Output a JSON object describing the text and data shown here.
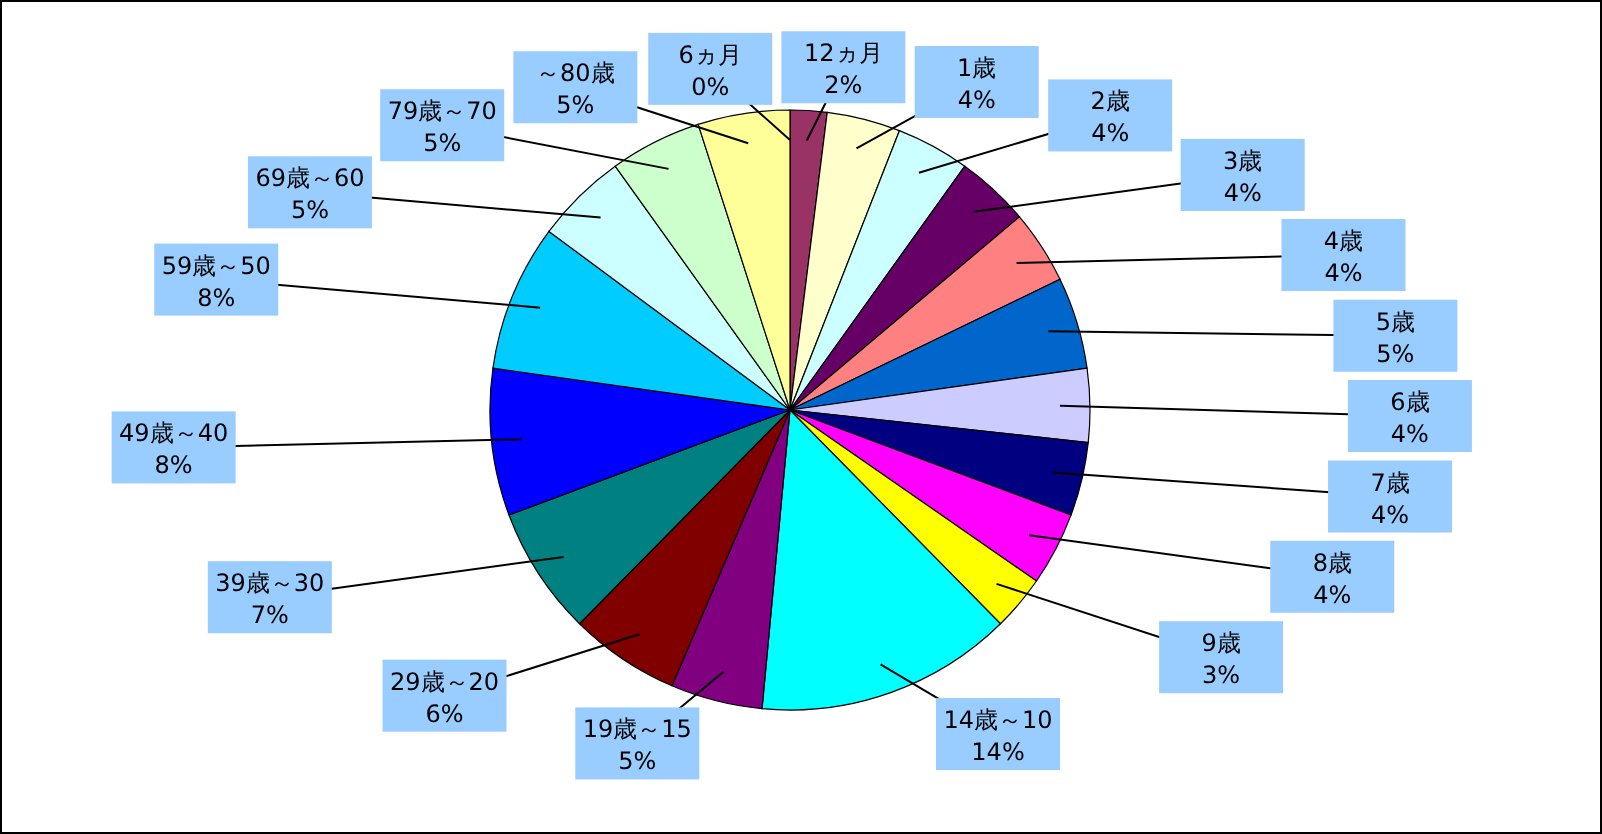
{
  "chart_data": {
    "type": "pie",
    "categories": [
      "6ヵ月",
      "12ヵ月",
      "1歳",
      "2歳",
      "3歳",
      "4歳",
      "5歳",
      "6歳",
      "7歳",
      "8歳",
      "9歳",
      "14歳～10",
      "19歳～15",
      "29歳～20",
      "39歳～30",
      "49歳～40",
      "59歳～50",
      "69歳～60",
      "79歳～70",
      "～80歳"
    ],
    "values": [
      0,
      2,
      4,
      4,
      4,
      4,
      5,
      4,
      4,
      4,
      3,
      14,
      5,
      6,
      7,
      8,
      8,
      5,
      5,
      5
    ],
    "value_labels": [
      "0%",
      "2%",
      "4%",
      "4%",
      "4%",
      "4%",
      "5%",
      "4%",
      "4%",
      "4%",
      "3%",
      "14%",
      "5%",
      "6%",
      "7%",
      "8%",
      "8%",
      "5%",
      "5%",
      "5%"
    ],
    "colors": [
      "#9999ff",
      "#993366",
      "#ffffcc",
      "#ccffff",
      "#660066",
      "#ff8080",
      "#0066cc",
      "#ccccff",
      "#000080",
      "#ff00ff",
      "#ffff00",
      "#00ffff",
      "#800080",
      "#800000",
      "#008080",
      "#0000ff",
      "#00ccff",
      "#ccffff",
      "#ccffcc",
      "#ffff99"
    ]
  }
}
